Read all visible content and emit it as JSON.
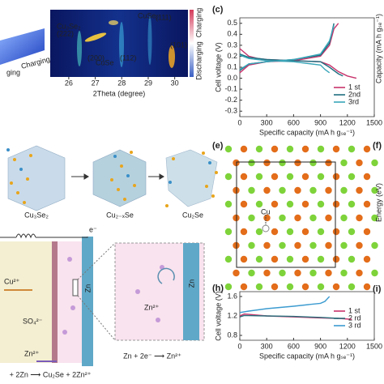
{
  "panel_a": {
    "charging": "Charging",
    "partial": "ging"
  },
  "panel_b": {
    "xlabel": "2Theta (degree)",
    "xlim": [
      25.3,
      30.5
    ],
    "xticks": [
      26,
      27,
      28,
      29,
      30
    ],
    "peaks": [
      "Cu₃Se₂",
      "(222)",
      "(200)",
      "CuSe",
      "(112)",
      "CuSe₂",
      "(111)",
      "(101)"
    ],
    "side": {
      "discharging": "Discharging",
      "charging": "Charging"
    }
  },
  "structures": {
    "labels": [
      "Cu₃Se₂",
      "Cu₂₋ₓSe",
      "Cu₂Se"
    ]
  },
  "schematic": {
    "electron": "e⁻",
    "cu": "Cu²⁺",
    "so4": "SO₄²⁻",
    "zn_ion": "Zn²⁺",
    "zn": "Zn",
    "zoom_zn_ion": "Zn²⁺",
    "zoom_zn": "Zn",
    "half_reaction": "Zn + 2e⁻ ⟶ Zn²⁺",
    "overall": "+ 2Zn ⟶ Cu₂Se + 2Zn²⁺"
  },
  "panel_e": {
    "label": "(e)",
    "atom": "Cu"
  },
  "panel_f": {
    "label": "(f)",
    "ylabel": "Energy (eV)",
    "ylabel_top": "Capacity (mA h gₛₑ⁻¹)"
  },
  "panel_i": {
    "label": "(i)"
  },
  "chart_data": [
    {
      "type": "line",
      "label": "(c)",
      "xlabel": "Specific capacity (mA h gₛₑ⁻¹)",
      "ylabel": "Cell voltage (V)",
      "xlim": [
        0,
        1500
      ],
      "xticks": [
        0,
        300,
        600,
        900,
        1200,
        1500
      ],
      "ylim": [
        -0.35,
        0.55
      ],
      "yticks": [
        0.5,
        0.4,
        0.3,
        0.2,
        0.1,
        {
          "value": 0,
          "label": "0.0"
        },
        -0.1,
        -0.2,
        -0.3
      ],
      "legend": "lower right",
      "series": [
        {
          "name": "1 st",
          "color": "#c8336b",
          "x": [
            0,
            100,
            200,
            300,
            600,
            900,
            1000,
            1100,
            1200,
            1300,
            null,
            0,
            100,
            300,
            600,
            900,
            1000,
            1050,
            1100
          ],
          "values": [
            0.27,
            0.2,
            0.18,
            0.17,
            0.16,
            0.15,
            0.12,
            0.06,
            0.02,
            0.0,
            null,
            0.05,
            0.12,
            0.15,
            0.16,
            0.2,
            0.3,
            0.45,
            0.5
          ]
        },
        {
          "name": "2nd",
          "color": "#1f6f80",
          "x": [
            0,
            100,
            300,
            600,
            900,
            1000,
            1100,
            1150,
            null,
            0,
            100,
            300,
            600,
            900,
            1000,
            1050
          ],
          "values": [
            0.22,
            0.19,
            0.17,
            0.16,
            0.15,
            0.1,
            0.04,
            0.02,
            null,
            0.07,
            0.13,
            0.15,
            0.17,
            0.21,
            0.32,
            0.5
          ]
        },
        {
          "name": "3rd",
          "color": "#3aa6b9",
          "x": [
            0,
            100,
            300,
            600,
            900,
            950,
            1000,
            null,
            0,
            100,
            300,
            600,
            900,
            1000,
            1050
          ],
          "values": [
            0.21,
            0.18,
            0.16,
            0.15,
            0.12,
            0.08,
            0.05,
            null,
            0.08,
            0.13,
            0.15,
            0.17,
            0.22,
            0.34,
            0.48
          ]
        }
      ]
    },
    {
      "type": "line",
      "label": "(h)",
      "xlabel": "Specific capacity (mA h gₛₑ⁻¹)",
      "ylabel": "Cell voltage (V)",
      "xlim": [
        0,
        1500
      ],
      "xticks": [
        0,
        300,
        600,
        900,
        1200,
        1500
      ],
      "ylim": [
        0.7,
        1.7
      ],
      "yticks": [
        1.6,
        1.2,
        0.8
      ],
      "legend": "lower right",
      "series": [
        {
          "name": "1 st",
          "color": "#c8336b",
          "x": [
            0,
            50,
            300,
            600,
            900,
            1100,
            1250
          ],
          "values": [
            1.2,
            1.24,
            1.2,
            1.18,
            1.16,
            1.15,
            1.13
          ]
        },
        {
          "name": "2 rd",
          "color": "#2a6f7c",
          "x": [
            0,
            50,
            300,
            600,
            900,
            1100
          ],
          "values": [
            1.18,
            1.21,
            1.2,
            1.19,
            1.17,
            1.15
          ]
        },
        {
          "name": "3 rd",
          "color": "#3b9bd0",
          "x": [
            0,
            100,
            300,
            600,
            900,
            950,
            1000
          ],
          "values": [
            1.27,
            1.3,
            1.35,
            1.4,
            1.46,
            1.5,
            1.6
          ]
        }
      ]
    }
  ]
}
